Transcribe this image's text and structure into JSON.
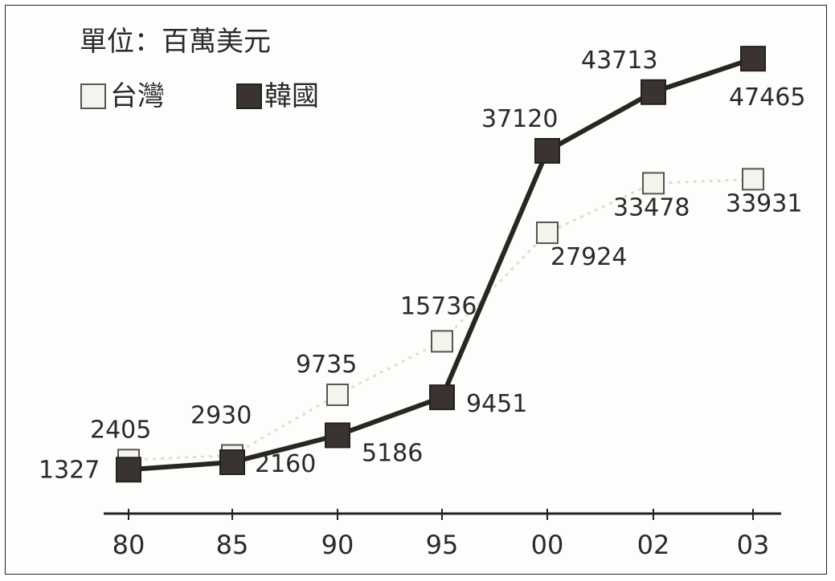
{
  "chart_data": {
    "type": "line",
    "unit_note": "單位：百萬美元",
    "categories": [
      "80",
      "85",
      "90",
      "95",
      "00",
      "02",
      "03"
    ],
    "ylim": [
      0,
      50000
    ],
    "grid": false,
    "legend": "top-left",
    "series": [
      {
        "name": "台灣",
        "values": [
          2405,
          2930,
          9735,
          15736,
          27924,
          33478,
          33931
        ],
        "color": "#f4f4ec",
        "edge": "#555555",
        "line": false
      },
      {
        "name": "韓國",
        "values": [
          1327,
          2160,
          5186,
          9451,
          37120,
          43713,
          47465
        ],
        "color": "#3a3330",
        "edge": "#222222",
        "line": true
      }
    ]
  }
}
